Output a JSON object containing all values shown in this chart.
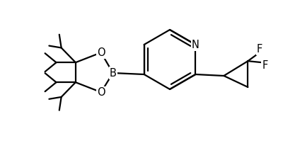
{
  "background_color": "#ffffff",
  "line_color": "#000000",
  "line_width": 1.6,
  "font_size": 10.5,
  "figsize": [
    4.0,
    2.16
  ],
  "dpi": 100,
  "xlim": [
    0,
    10
  ],
  "ylim": [
    0,
    5.4
  ]
}
